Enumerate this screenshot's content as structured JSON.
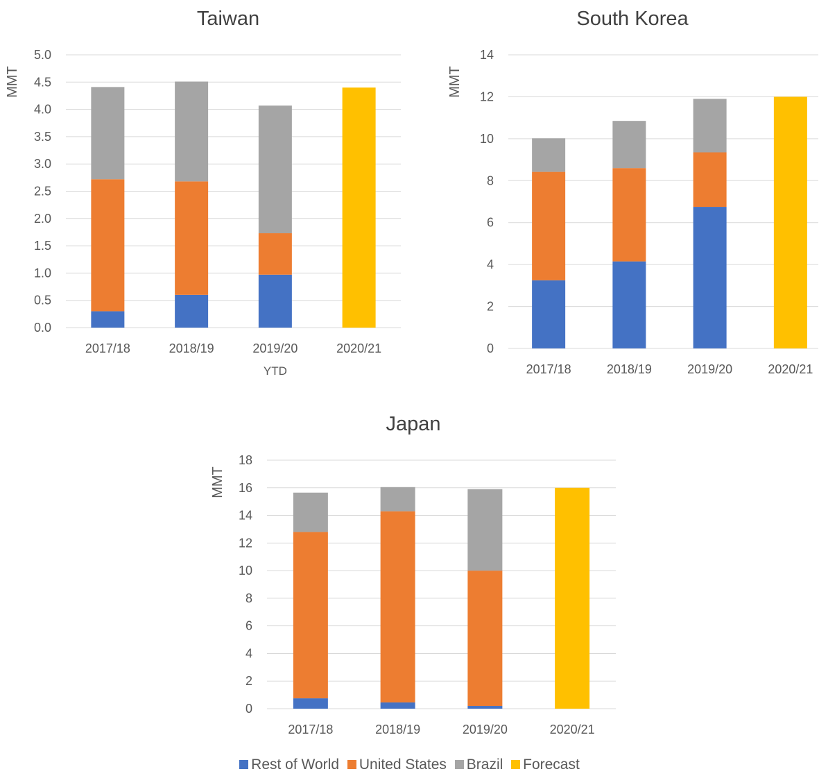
{
  "chart_data": [
    {
      "type": "bar",
      "stacked": true,
      "title": "Taiwan",
      "ylabel": "MMT",
      "ylim": [
        0,
        5.0
      ],
      "yticks": [
        "0.0",
        "0.5",
        "1.0",
        "1.5",
        "2.0",
        "2.5",
        "3.0",
        "3.5",
        "4.0",
        "4.5",
        "5.0"
      ],
      "categories": [
        "2017/18",
        "2018/19",
        "2019/20",
        "2020/21"
      ],
      "category_sublabels": [
        "",
        "",
        "YTD",
        ""
      ],
      "series": [
        {
          "name": "Rest of World",
          "color": "#4472c4",
          "values": [
            0.3,
            0.6,
            0.97,
            0
          ]
        },
        {
          "name": "United States",
          "color": "#ed7d31",
          "values": [
            2.42,
            2.08,
            0.76,
            0
          ]
        },
        {
          "name": "Brazil",
          "color": "#a5a5a5",
          "values": [
            1.69,
            1.83,
            2.34,
            0
          ]
        },
        {
          "name": "Forecast",
          "color": "#ffc000",
          "values": [
            0,
            0,
            0,
            4.4
          ]
        }
      ]
    },
    {
      "type": "bar",
      "stacked": true,
      "title": "South Korea",
      "ylabel": "MMT",
      "ylim": [
        0,
        14
      ],
      "yticks": [
        "0",
        "2",
        "4",
        "6",
        "8",
        "10",
        "12",
        "14"
      ],
      "categories": [
        "2017/18",
        "2018/19",
        "2019/20",
        "2020/21"
      ],
      "category_sublabels": [
        "",
        "",
        "",
        ""
      ],
      "series": [
        {
          "name": "Rest of World",
          "color": "#4472c4",
          "values": [
            3.25,
            4.15,
            6.75,
            0
          ]
        },
        {
          "name": "United States",
          "color": "#ed7d31",
          "values": [
            5.17,
            4.45,
            2.6,
            0
          ]
        },
        {
          "name": "Brazil",
          "color": "#a5a5a5",
          "values": [
            1.6,
            2.25,
            2.55,
            0
          ]
        },
        {
          "name": "Forecast",
          "color": "#ffc000",
          "values": [
            0,
            0,
            0,
            12.0
          ]
        }
      ]
    },
    {
      "type": "bar",
      "stacked": true,
      "title": "Japan",
      "ylabel": "MMT",
      "ylim": [
        0,
        18
      ],
      "yticks": [
        "0",
        "2",
        "4",
        "6",
        "8",
        "10",
        "12",
        "14",
        "16",
        "18"
      ],
      "categories": [
        "2017/18",
        "2018/19",
        "2019/20",
        "2020/21"
      ],
      "category_sublabels": [
        "",
        "",
        "",
        ""
      ],
      "series": [
        {
          "name": "Rest of World",
          "color": "#4472c4",
          "values": [
            0.75,
            0.45,
            0.2,
            0
          ]
        },
        {
          "name": "United States",
          "color": "#ed7d31",
          "values": [
            12.05,
            13.85,
            9.8,
            0
          ]
        },
        {
          "name": "Brazil",
          "color": "#a5a5a5",
          "values": [
            2.85,
            1.75,
            5.9,
            0
          ]
        },
        {
          "name": "Forecast",
          "color": "#ffc000",
          "values": [
            0,
            0,
            0,
            16.0
          ]
        }
      ]
    }
  ],
  "legend": {
    "placement": "bottom",
    "items": [
      {
        "label": "Rest of World",
        "color": "#4472c4"
      },
      {
        "label": "United States",
        "color": "#ed7d31"
      },
      {
        "label": "Brazil",
        "color": "#a5a5a5"
      },
      {
        "label": "Forecast",
        "color": "#ffc000"
      }
    ]
  }
}
